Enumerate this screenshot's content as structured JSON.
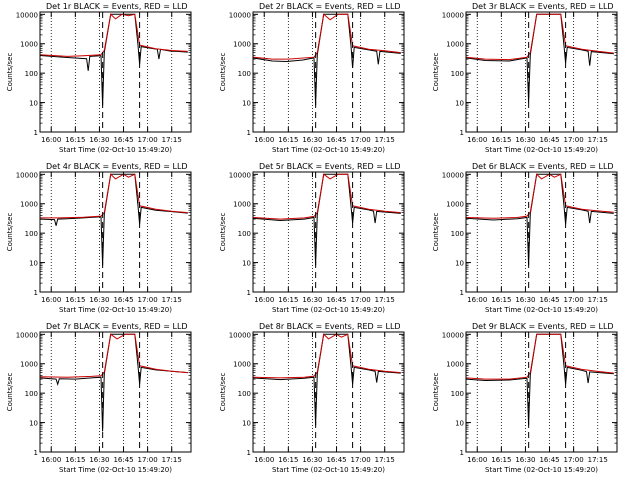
{
  "chart_data": [
    {
      "type": "line",
      "title": "Det 1r BLACK = Events, RED = LLD",
      "ylabel": "Counts/sec",
      "xlabel": "Start Time (02-Oct-10 15:49:20)",
      "ylog": true,
      "ylim": [
        1,
        12000
      ],
      "xlim": [
        "15:53",
        "17:27"
      ],
      "x_ticks": [
        "16:00",
        "16:15",
        "16:30",
        "16:45",
        "17:00",
        "17:15"
      ],
      "grid": "vertical-dotted",
      "markers_dashed": [
        "16:32",
        "16:55"
      ],
      "series": [
        {
          "name": "Events",
          "color": "#000000",
          "x": [
            "15:53",
            "16:10",
            "16:22",
            "16:23",
            "16:24",
            "16:31",
            "16:32",
            "16:33",
            "16:37",
            "16:52",
            "16:54",
            "16:55",
            "16:56",
            "17:02",
            "17:06",
            "17:07",
            "17:08",
            "17:12",
            "17:15",
            "17:18",
            "17:25"
          ],
          "y": [
            400,
            340,
            310,
            120,
            370,
            390,
            8,
            500,
            10000,
            10000,
            900,
            200,
            800,
            700,
            650,
            300,
            640,
            590,
            560,
            550,
            520
          ]
        },
        {
          "name": "LLD",
          "color": "#cc0000",
          "x": [
            "15:53",
            "16:10",
            "16:20",
            "16:31",
            "16:33",
            "16:37",
            "16:40",
            "16:44",
            "16:48",
            "16:52",
            "16:55",
            "17:05",
            "17:15",
            "17:25"
          ],
          "y": [
            420,
            370,
            390,
            420,
            600,
            10000,
            7000,
            10000,
            9000,
            10000,
            900,
            680,
            590,
            550
          ]
        }
      ]
    },
    {
      "type": "line",
      "title": "Det 2r BLACK = Events, RED = LLD",
      "ylabel": "Counts/sec",
      "xlabel": "Start Time (02-Oct-10 15:49:20)",
      "ylog": true,
      "ylim": [
        1,
        12000
      ],
      "xlim": [
        "15:53",
        "17:27"
      ],
      "x_ticks": [
        "16:00",
        "16:15",
        "16:30",
        "16:45",
        "17:00",
        "17:15"
      ],
      "grid": "vertical-dotted",
      "markers_dashed": [
        "16:32",
        "16:55"
      ],
      "series": [
        {
          "name": "Events",
          "color": "#000000",
          "x": [
            "15:53",
            "16:05",
            "16:14",
            "16:24",
            "16:31",
            "16:32",
            "16:33",
            "16:37",
            "16:52",
            "16:54",
            "16:55",
            "16:56",
            "17:05",
            "17:10",
            "17:11",
            "17:12",
            "17:25"
          ],
          "y": [
            330,
            260,
            250,
            280,
            330,
            8,
            420,
            10000,
            10000,
            850,
            150,
            750,
            620,
            560,
            200,
            550,
            470
          ]
        },
        {
          "name": "LLD",
          "color": "#cc0000",
          "x": [
            "15:53",
            "16:05",
            "16:15",
            "16:31",
            "16:33",
            "16:37",
            "16:41",
            "16:46",
            "16:52",
            "16:55",
            "17:05",
            "17:15",
            "17:25"
          ],
          "y": [
            350,
            300,
            300,
            350,
            500,
            10000,
            6500,
            10000,
            10000,
            850,
            650,
            580,
            500
          ]
        }
      ]
    },
    {
      "type": "line",
      "title": "Det 3r BLACK = Events, RED = LLD",
      "ylabel": "Counts/sec",
      "xlabel": "Start Time (02-Oct-10 15:49:20)",
      "ylog": true,
      "ylim": [
        1,
        12000
      ],
      "xlim": [
        "15:53",
        "17:27"
      ],
      "x_ticks": [
        "16:00",
        "16:15",
        "16:30",
        "16:45",
        "17:00",
        "17:15"
      ],
      "grid": "vertical-dotted",
      "markers_dashed": [
        "16:32",
        "16:55"
      ],
      "series": [
        {
          "name": "Events",
          "color": "#000000",
          "x": [
            "15:53",
            "16:05",
            "16:20",
            "16:31",
            "16:32",
            "16:33",
            "16:37",
            "16:52",
            "16:54",
            "16:55",
            "16:56",
            "17:05",
            "17:09",
            "17:10",
            "17:11",
            "17:25"
          ],
          "y": [
            330,
            270,
            260,
            330,
            10,
            420,
            10000,
            10000,
            850,
            220,
            750,
            620,
            560,
            180,
            540,
            460
          ]
        },
        {
          "name": "LLD",
          "color": "#cc0000",
          "x": [
            "15:53",
            "16:05",
            "16:20",
            "16:31",
            "16:33",
            "16:37",
            "16:52",
            "16:55",
            "17:05",
            "17:15",
            "17:25"
          ],
          "y": [
            350,
            300,
            290,
            350,
            500,
            10000,
            10000,
            850,
            650,
            560,
            480
          ]
        }
      ]
    },
    {
      "type": "line",
      "title": "Det 4r BLACK = Events, RED = LLD",
      "ylabel": "Counts/sec",
      "xlabel": "Start Time (02-Oct-10 15:49:20)",
      "ylog": true,
      "ylim": [
        1,
        12000
      ],
      "xlim": [
        "15:53",
        "17:27"
      ],
      "x_ticks": [
        "16:00",
        "16:15",
        "16:30",
        "16:45",
        "17:00",
        "17:15"
      ],
      "grid": "vertical-dotted",
      "markers_dashed": [
        "16:32",
        "16:55"
      ],
      "series": [
        {
          "name": "Events",
          "color": "#000000",
          "x": [
            "15:53",
            "16:02",
            "16:03",
            "16:04",
            "16:10",
            "16:20",
            "16:31",
            "16:32",
            "16:33",
            "16:37",
            "16:52",
            "16:54",
            "16:55",
            "16:56",
            "17:05",
            "17:15",
            "17:25"
          ],
          "y": [
            300,
            290,
            180,
            300,
            310,
            330,
            360,
            8,
            430,
            10000,
            10000,
            850,
            200,
            750,
            600,
            540,
            480
          ]
        },
        {
          "name": "LLD",
          "color": "#cc0000",
          "x": [
            "15:53",
            "16:05",
            "16:20",
            "16:31",
            "16:33",
            "16:37",
            "16:40",
            "16:45",
            "16:48",
            "16:52",
            "16:55",
            "17:05",
            "17:15",
            "17:25"
          ],
          "y": [
            330,
            330,
            350,
            380,
            500,
            10000,
            7000,
            10000,
            8000,
            10000,
            850,
            650,
            560,
            500
          ]
        }
      ]
    },
    {
      "type": "line",
      "title": "Det 5r BLACK = Events, RED = LLD",
      "ylabel": "Counts/sec",
      "xlabel": "Start Time (02-Oct-10 15:49:20)",
      "ylog": true,
      "ylim": [
        1,
        12000
      ],
      "xlim": [
        "15:53",
        "17:27"
      ],
      "x_ticks": [
        "16:00",
        "16:15",
        "16:30",
        "16:45",
        "17:00",
        "17:15"
      ],
      "grid": "vertical-dotted",
      "markers_dashed": [
        "16:32",
        "16:55"
      ],
      "series": [
        {
          "name": "Events",
          "color": "#000000",
          "x": [
            "15:53",
            "16:10",
            "16:25",
            "16:31",
            "16:32",
            "16:33",
            "16:37",
            "16:52",
            "16:54",
            "16:55",
            "16:56",
            "17:05",
            "17:08",
            "17:09",
            "17:10",
            "17:25"
          ],
          "y": [
            320,
            270,
            300,
            340,
            8,
            430,
            10000,
            10000,
            850,
            220,
            750,
            620,
            560,
            220,
            550,
            470
          ]
        },
        {
          "name": "LLD",
          "color": "#cc0000",
          "x": [
            "15:53",
            "16:10",
            "16:25",
            "16:31",
            "16:33",
            "16:37",
            "16:41",
            "16:46",
            "16:52",
            "16:55",
            "17:05",
            "17:15",
            "17:25"
          ],
          "y": [
            340,
            300,
            330,
            370,
            500,
            10000,
            7000,
            10000,
            10000,
            850,
            650,
            560,
            500
          ]
        }
      ]
    },
    {
      "type": "line",
      "title": "Det 6r BLACK = Events, RED = LLD",
      "ylabel": "Counts/sec",
      "xlabel": "Start Time (02-Oct-10 15:49:20)",
      "ylog": true,
      "ylim": [
        1,
        12000
      ],
      "xlim": [
        "15:53",
        "17:27"
      ],
      "x_ticks": [
        "16:00",
        "16:15",
        "16:30",
        "16:45",
        "17:00",
        "17:15"
      ],
      "grid": "vertical-dotted",
      "markers_dashed": [
        "16:32",
        "16:55"
      ],
      "series": [
        {
          "name": "Events",
          "color": "#000000",
          "x": [
            "15:53",
            "16:10",
            "16:25",
            "16:31",
            "16:32",
            "16:33",
            "16:37",
            "16:52",
            "16:54",
            "16:55",
            "16:56",
            "17:05",
            "17:09",
            "17:10",
            "17:11",
            "17:25"
          ],
          "y": [
            320,
            280,
            310,
            340,
            8,
            450,
            10000,
            10000,
            850,
            200,
            750,
            620,
            560,
            220,
            550,
            470
          ]
        },
        {
          "name": "LLD",
          "color": "#cc0000",
          "x": [
            "15:53",
            "16:10",
            "16:25",
            "16:31",
            "16:33",
            "16:37",
            "16:40",
            "16:45",
            "16:48",
            "16:52",
            "16:55",
            "17:05",
            "17:15",
            "17:25"
          ],
          "y": [
            340,
            320,
            340,
            380,
            520,
            10000,
            7000,
            10000,
            8000,
            10000,
            850,
            650,
            570,
            510
          ]
        }
      ]
    },
    {
      "type": "line",
      "title": "Det 7r BLACK = Events, RED = LLD",
      "ylabel": "Counts/sec",
      "xlabel": "Start Time (02-Oct-10 15:49:20)",
      "ylog": true,
      "ylim": [
        1,
        12000
      ],
      "xlim": [
        "15:53",
        "17:27"
      ],
      "x_ticks": [
        "16:00",
        "16:15",
        "16:30",
        "16:45",
        "17:00",
        "17:15"
      ],
      "grid": "vertical-dotted",
      "markers_dashed": [
        "16:32",
        "16:55"
      ],
      "series": [
        {
          "name": "Events",
          "color": "#000000",
          "x": [
            "15:53",
            "16:03",
            "16:04",
            "16:05",
            "16:15",
            "16:25",
            "16:31",
            "16:32",
            "16:33",
            "16:37",
            "16:52",
            "16:54",
            "16:55",
            "16:56",
            "17:05",
            "17:15",
            "17:25"
          ],
          "y": [
            330,
            300,
            200,
            310,
            300,
            330,
            350,
            5,
            450,
            10000,
            10000,
            850,
            200,
            750,
            620,
            560,
            500
          ]
        },
        {
          "name": "LLD",
          "color": "#cc0000",
          "x": [
            "15:53",
            "16:10",
            "16:25",
            "16:31",
            "16:33",
            "16:37",
            "16:41",
            "16:46",
            "16:52",
            "16:55",
            "17:05",
            "17:15",
            "17:25"
          ],
          "y": [
            360,
            350,
            370,
            390,
            520,
            10000,
            7000,
            10000,
            10000,
            850,
            650,
            560,
            500
          ]
        }
      ]
    },
    {
      "type": "line",
      "title": "Det 8r BLACK = Events, RED = LLD",
      "ylabel": "Counts/sec",
      "xlabel": "Start Time (02-Oct-10 15:49:20)",
      "ylog": true,
      "ylim": [
        1,
        12000
      ],
      "xlim": [
        "15:53",
        "17:27"
      ],
      "x_ticks": [
        "16:00",
        "16:15",
        "16:30",
        "16:45",
        "17:00",
        "17:15"
      ],
      "grid": "vertical-dotted",
      "markers_dashed": [
        "16:32",
        "16:55"
      ],
      "series": [
        {
          "name": "Events",
          "color": "#000000",
          "x": [
            "15:53",
            "16:10",
            "16:25",
            "16:31",
            "16:32",
            "16:33",
            "16:37",
            "16:52",
            "16:54",
            "16:55",
            "16:56",
            "17:05",
            "17:09",
            "17:10",
            "17:11",
            "17:25"
          ],
          "y": [
            330,
            290,
            320,
            350,
            8,
            450,
            10000,
            10000,
            850,
            200,
            750,
            620,
            560,
            230,
            550,
            480
          ]
        },
        {
          "name": "LLD",
          "color": "#cc0000",
          "x": [
            "15:53",
            "16:10",
            "16:25",
            "16:31",
            "16:33",
            "16:37",
            "16:40",
            "16:45",
            "16:48",
            "16:52",
            "16:55",
            "17:05",
            "17:15",
            "17:25"
          ],
          "y": [
            350,
            330,
            350,
            380,
            520,
            10000,
            7000,
            10000,
            8000,
            10000,
            850,
            650,
            560,
            500
          ]
        }
      ]
    },
    {
      "type": "line",
      "title": "Det 9r BLACK = Events, RED = LLD",
      "ylabel": "Counts/sec",
      "xlabel": "Start Time (02-Oct-10 15:49:20)",
      "ylog": true,
      "ylim": [
        1,
        12000
      ],
      "xlim": [
        "15:53",
        "17:27"
      ],
      "x_ticks": [
        "16:00",
        "16:15",
        "16:30",
        "16:45",
        "17:00",
        "17:15"
      ],
      "grid": "vertical-dotted",
      "markers_dashed": [
        "16:32",
        "16:55"
      ],
      "series": [
        {
          "name": "Events",
          "color": "#000000",
          "x": [
            "15:53",
            "16:05",
            "16:20",
            "16:31",
            "16:32",
            "16:33",
            "16:37",
            "16:52",
            "16:54",
            "16:55",
            "16:56",
            "17:05",
            "17:08",
            "17:09",
            "17:10",
            "17:25"
          ],
          "y": [
            300,
            270,
            280,
            320,
            8,
            420,
            10000,
            10000,
            850,
            200,
            750,
            600,
            540,
            220,
            530,
            460
          ]
        },
        {
          "name": "LLD",
          "color": "#cc0000",
          "x": [
            "15:53",
            "16:05",
            "16:20",
            "16:31",
            "16:33",
            "16:37",
            "16:52",
            "16:55",
            "17:05",
            "17:15",
            "17:25"
          ],
          "y": [
            330,
            300,
            300,
            350,
            500,
            10000,
            10000,
            850,
            640,
            550,
            480
          ]
        }
      ]
    }
  ]
}
